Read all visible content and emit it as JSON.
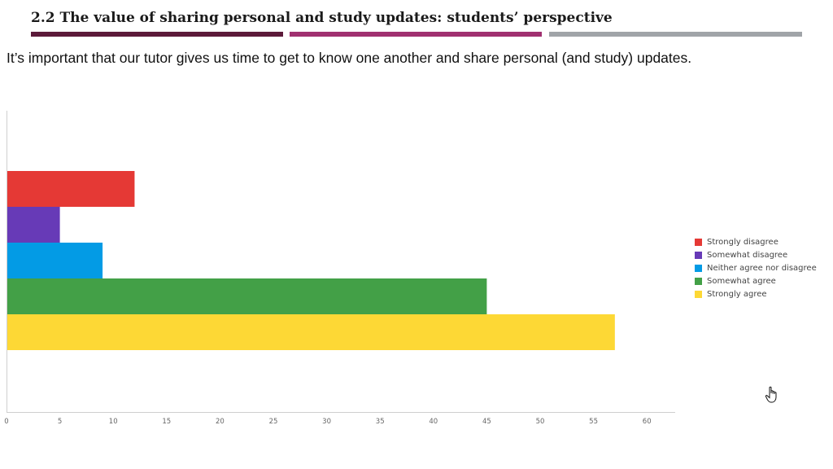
{
  "slide": {
    "title": "2.2 The value of sharing personal and study updates: students’ perspective",
    "subtitle": "It’s important that our tutor gives us time to get to know one another and share personal (and study) updates.",
    "title_bar_colors": [
      "#5c1a3a",
      "#a03070",
      "#a0a4a8"
    ]
  },
  "chart_data": {
    "type": "bar",
    "orientation": "horizontal",
    "title": "",
    "xlabel": "",
    "ylabel": "",
    "xlim": [
      0,
      62
    ],
    "xticks": [
      0,
      5,
      10,
      15,
      20,
      25,
      30,
      35,
      40,
      45,
      50,
      55,
      60
    ],
    "grid": false,
    "legend_position": "right",
    "series": [
      {
        "name": "Strongly disagree",
        "value": 12,
        "color": "#e53935"
      },
      {
        "name": "Somewhat disagree",
        "value": 5,
        "color": "#673ab7"
      },
      {
        "name": "Neither agree nor disagree",
        "value": 9,
        "color": "#039be5"
      },
      {
        "name": "Somewhat agree",
        "value": 45,
        "color": "#43a047"
      },
      {
        "name": "Strongly agree",
        "value": 57,
        "color": "#fdd835"
      }
    ]
  },
  "cursor": {
    "icon": "hand-pointer-icon"
  }
}
